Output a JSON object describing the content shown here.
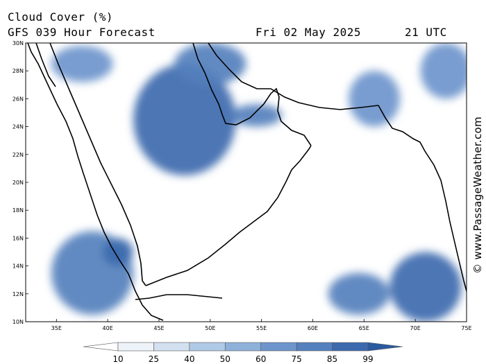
{
  "header": {
    "title": "Cloud Cover (%)",
    "model_line": "GFS 039 Hour Forecast",
    "date": "Fri 02 May 2025",
    "time": "21 UTC"
  },
  "map": {
    "region": "Arabian Peninsula",
    "lon_range": [
      32,
      75
    ],
    "lat_range": [
      10,
      30
    ],
    "lat_ticks": [
      "10N",
      "12N",
      "14N",
      "16N",
      "18N",
      "20N",
      "22N",
      "24N",
      "26N",
      "28N",
      "30N"
    ],
    "lon_ticks": [
      "35E",
      "40E",
      "45E",
      "50E",
      "55E",
      "60E",
      "65E",
      "70E",
      "75E"
    ],
    "cloud_areas": [
      {
        "name": "central-arabia",
        "lon": 47.5,
        "lat": 24.5,
        "rx": 5.0,
        "ry": 4.0,
        "cover": 85
      },
      {
        "name": "gulf-north",
        "lon": 50.0,
        "lat": 28.5,
        "rx": 3.5,
        "ry": 1.5,
        "cover": 75
      },
      {
        "name": "iraq-north",
        "lon": 37.5,
        "lat": 28.5,
        "rx": 3.0,
        "ry": 1.3,
        "cover": 60
      },
      {
        "name": "hormuz",
        "lon": 54.5,
        "lat": 24.8,
        "rx": 2.5,
        "ry": 0.8,
        "cover": 75
      },
      {
        "name": "sudan-ethiopia",
        "lon": 38.5,
        "lat": 13.5,
        "rx": 4.0,
        "ry": 3.0,
        "cover": 75
      },
      {
        "name": "red-sea-south",
        "lon": 41.0,
        "lat": 15.0,
        "rx": 1.5,
        "ry": 1.0,
        "cover": 90
      },
      {
        "name": "arabian-sea-east",
        "lon": 71.0,
        "lat": 12.5,
        "rx": 3.5,
        "ry": 2.5,
        "cover": 85
      },
      {
        "name": "arabian-sea-mid",
        "lon": 64.5,
        "lat": 12.0,
        "rx": 3.0,
        "ry": 1.5,
        "cover": 75
      },
      {
        "name": "pakistan",
        "lon": 66.0,
        "lat": 26.0,
        "rx": 2.5,
        "ry": 2.0,
        "cover": 60
      },
      {
        "name": "ne-corner",
        "lon": 73.0,
        "lat": 28.0,
        "rx": 2.5,
        "ry": 2.0,
        "cover": 60
      }
    ]
  },
  "colorbar": {
    "levels": [
      "10",
      "25",
      "40",
      "50",
      "60",
      "75",
      "85",
      "99"
    ],
    "colors": [
      "#ffffff",
      "#eef3fa",
      "#d3e0f0",
      "#b0c9e6",
      "#8eb1da",
      "#6d95cc",
      "#5480bd",
      "#3d6aae",
      "#2c5a9f"
    ]
  },
  "credit": "© www.PassageWeather.com"
}
